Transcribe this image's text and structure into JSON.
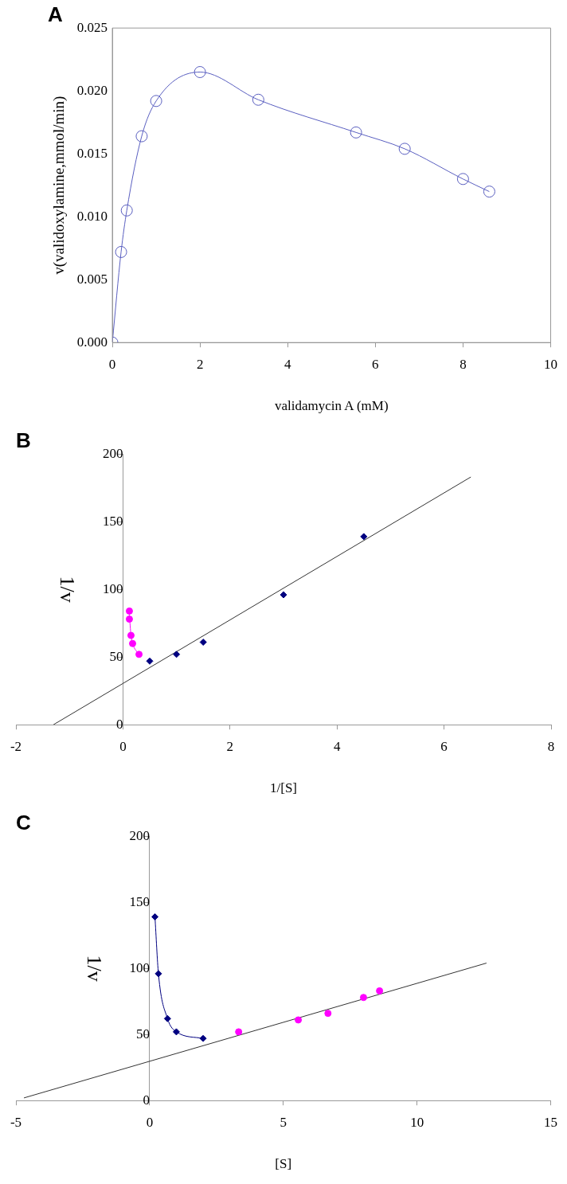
{
  "chart_data": [
    {
      "type": "line",
      "title": "A",
      "xlabel": "validamycin A (mM)",
      "ylabel": "v(validoxylamine,mmol/min)",
      "xlim": [
        0,
        10
      ],
      "xticks": [
        0,
        2,
        4,
        6,
        8,
        10
      ],
      "ylim": [
        0,
        0.025
      ],
      "yticks": [
        {
          "value": 0,
          "label": "0.000"
        },
        {
          "value": 0.005,
          "label": "0.005"
        },
        {
          "value": 0.01,
          "label": "0.010"
        },
        {
          "value": 0.015,
          "label": "0.015"
        },
        {
          "value": 0.02,
          "label": "0.020"
        },
        {
          "value": 0.025,
          "label": "0.025"
        }
      ],
      "grid": false,
      "legend": false,
      "series": [
        {
          "color": "#5a5fc0",
          "marker": "circle",
          "x": [
            0,
            0.2,
            0.33,
            0.67,
            1,
            2,
            3.33,
            5.56,
            6.67,
            8,
            8.6
          ],
          "values": [
            0,
            0.0072,
            0.0105,
            0.0164,
            0.0192,
            0.0215,
            0.0193,
            0.0167,
            0.0154,
            0.013,
            0.012
          ]
        }
      ]
    },
    {
      "type": "scatter",
      "title": "B",
      "xlabel": "1/[S]",
      "ylabel": "1/v",
      "xlim": [
        -2,
        8
      ],
      "xticks": [
        -2,
        0,
        2,
        4,
        6,
        8
      ],
      "ylim": [
        0,
        200
      ],
      "yticks": [
        0,
        50,
        100,
        150,
        200
      ],
      "grid": false,
      "legend": false,
      "series": [
        {
          "color": "#000080",
          "marker": "diamond",
          "x": [
            0.5,
            1,
            1.5,
            3,
            4.5
          ],
          "values": [
            47,
            52,
            61,
            96,
            139
          ]
        },
        {
          "type": "line",
          "color": "#ff00ff",
          "marker": "circle",
          "x": [
            0.12,
            0.12,
            0.15,
            0.18,
            0.3
          ],
          "values": [
            84,
            78,
            66,
            60,
            52
          ]
        },
        {
          "type": "line",
          "color": "#333333",
          "marker": "none",
          "x": [
            -1.3,
            6.5
          ],
          "values": [
            0,
            183
          ]
        }
      ]
    },
    {
      "type": "scatter",
      "title": "C",
      "xlabel": "[S]",
      "ylabel": "1/v",
      "xlim": [
        -5,
        15
      ],
      "xticks": [
        -5,
        0,
        5,
        10,
        15
      ],
      "ylim": [
        0,
        200
      ],
      "yticks": [
        0,
        50,
        100,
        150,
        200
      ],
      "grid": false,
      "legend": false,
      "series": [
        {
          "type": "line",
          "color": "#000080",
          "marker": "diamond",
          "x": [
            0.2,
            0.33,
            0.67,
            1,
            2
          ],
          "values": [
            139,
            96,
            62,
            52,
            47
          ]
        },
        {
          "color": "#ff00ff",
          "marker": "circle",
          "x": [
            3.33,
            5.56,
            6.67,
            8,
            8.6
          ],
          "values": [
            52,
            61,
            66,
            78,
            83
          ]
        },
        {
          "type": "line",
          "color": "#333333",
          "marker": "none",
          "x": [
            -4.7,
            12.6
          ],
          "values": [
            2,
            104
          ]
        }
      ]
    }
  ]
}
